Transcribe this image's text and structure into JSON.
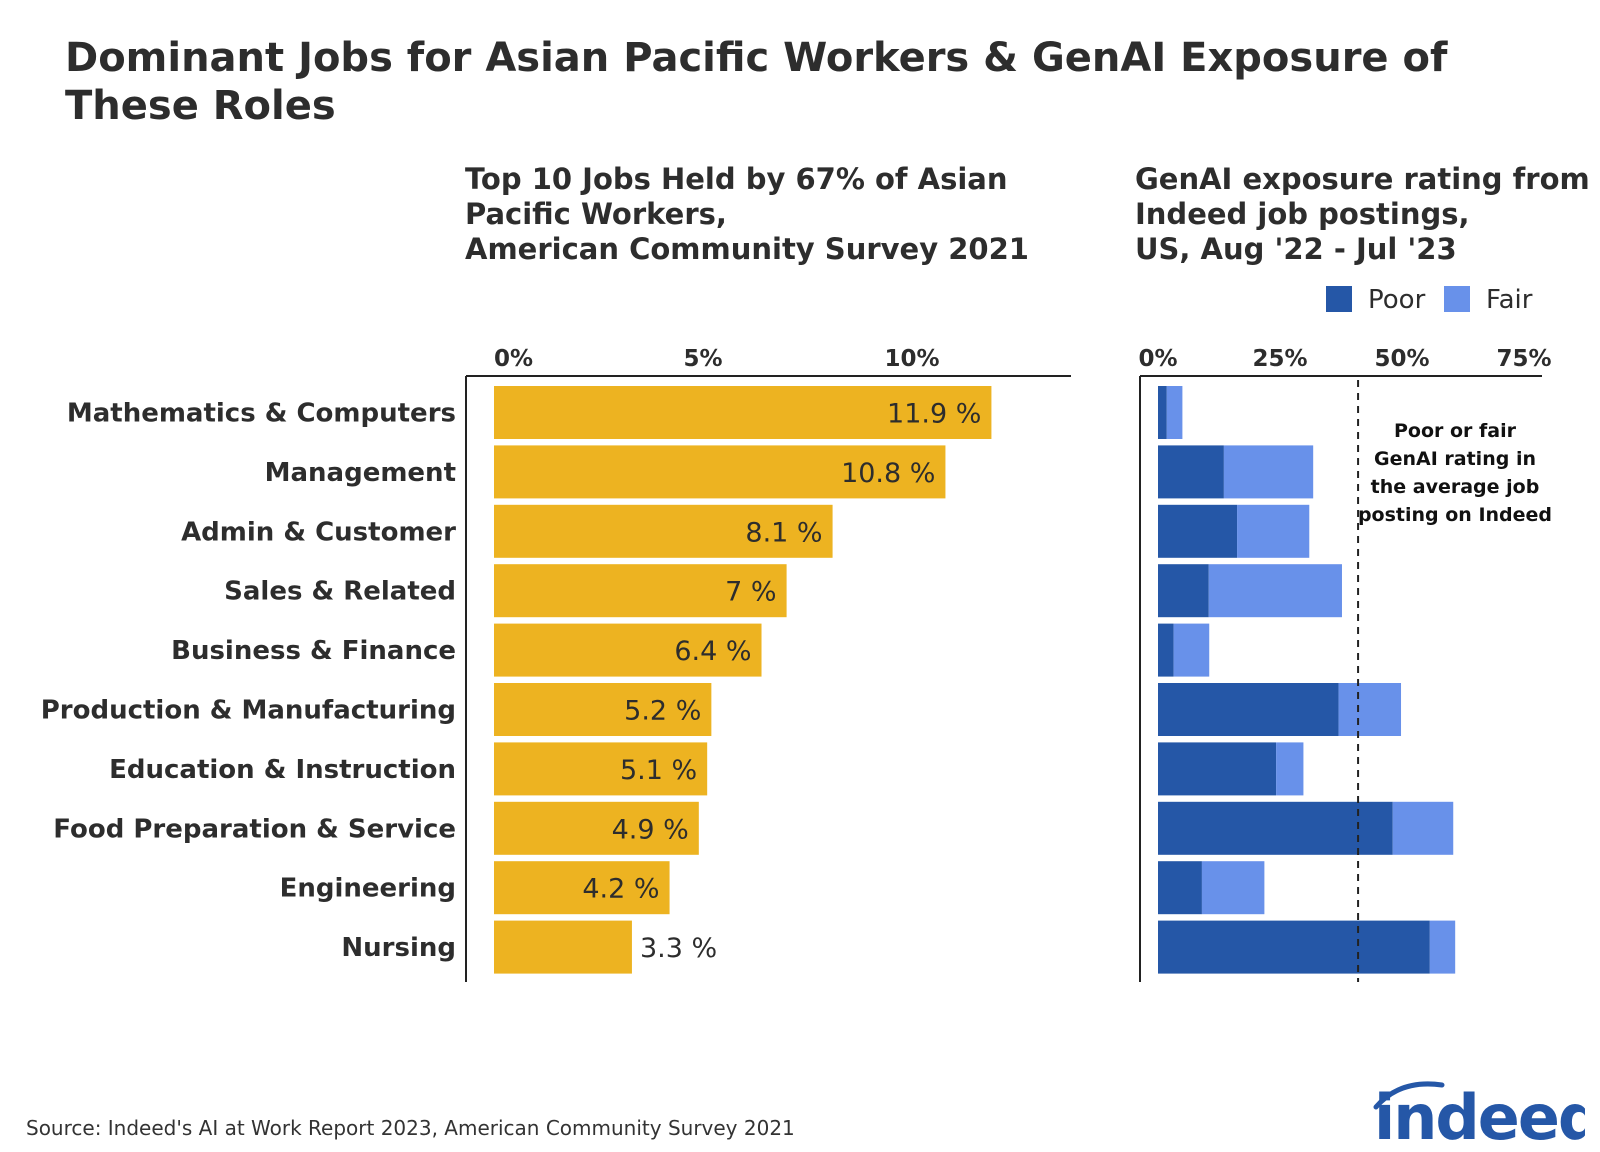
{
  "title": "Dominant Jobs for Asian Pacific Workers & GenAI Exposure of These Roles",
  "source": "Source: Indeed's AI at Work Report 2023, American Community Survey 2021",
  "logo_text": "indeed",
  "chart_data": [
    {
      "type": "bar",
      "orientation": "horizontal",
      "title": "Top 10 Jobs Held by 67% of Asian\nPacific Workers,\nAmerican Community Survey 2021",
      "categories": [
        "Mathematics & Computers",
        "Management",
        "Admin & Customer",
        "Sales & Related",
        "Business & Finance",
        "Production & Manufacturing",
        "Education & Instruction",
        "Food Preparation & Service",
        "Engineering",
        "Nursing"
      ],
      "values": [
        11.9,
        10.8,
        8.1,
        7,
        6.4,
        5.2,
        5.1,
        4.9,
        4.2,
        3.3
      ],
      "data_labels": [
        "11.9 %",
        "10.8 %",
        "8.1 %",
        "7 %",
        "6.4 %",
        "5.2 %",
        "5.1 %",
        "4.9 %",
        "4.2 %",
        "3.3 %"
      ],
      "xlim": [
        0,
        13.5
      ],
      "ticks": [
        0,
        5,
        10
      ],
      "tick_labels": [
        "0%",
        "5%",
        "10%"
      ],
      "axis_position": "top",
      "grid": false,
      "color": "#EDB321"
    },
    {
      "type": "bar",
      "orientation": "horizontal",
      "stacked": true,
      "title": "GenAI exposure rating from\nIndeed job postings,\nUS, Aug '22 - Jul '23",
      "categories": [
        "Mathematics & Computers",
        "Management",
        "Admin & Customer",
        "Sales & Related",
        "Business & Finance",
        "Production & Manufacturing",
        "Education & Instruction",
        "Food Preparation & Service",
        "Engineering",
        "Nursing"
      ],
      "series": [
        {
          "name": "Poor",
          "color": "#2557A7",
          "values": [
            1.8,
            13.5,
            16.2,
            10.4,
            3.2,
            37,
            24.2,
            48.1,
            9,
            55.7
          ]
        },
        {
          "name": "Fair",
          "color": "#6891EA",
          "values": [
            3.2,
            18.3,
            14.8,
            27.3,
            7.3,
            12.8,
            5.6,
            12.4,
            12.8,
            5.2
          ]
        }
      ],
      "xlim": [
        0,
        78
      ],
      "ticks": [
        0,
        25,
        50,
        75
      ],
      "tick_labels": [
        "0%",
        "25%",
        "50%",
        "75%"
      ],
      "axis_position": "top",
      "legend_position": "top-right",
      "grid": false,
      "reference_line": {
        "value": 41,
        "style": "dashed",
        "annotation": "Poor or fair\nGenAI rating in\nthe average job\nposting on Indeed"
      }
    }
  ]
}
